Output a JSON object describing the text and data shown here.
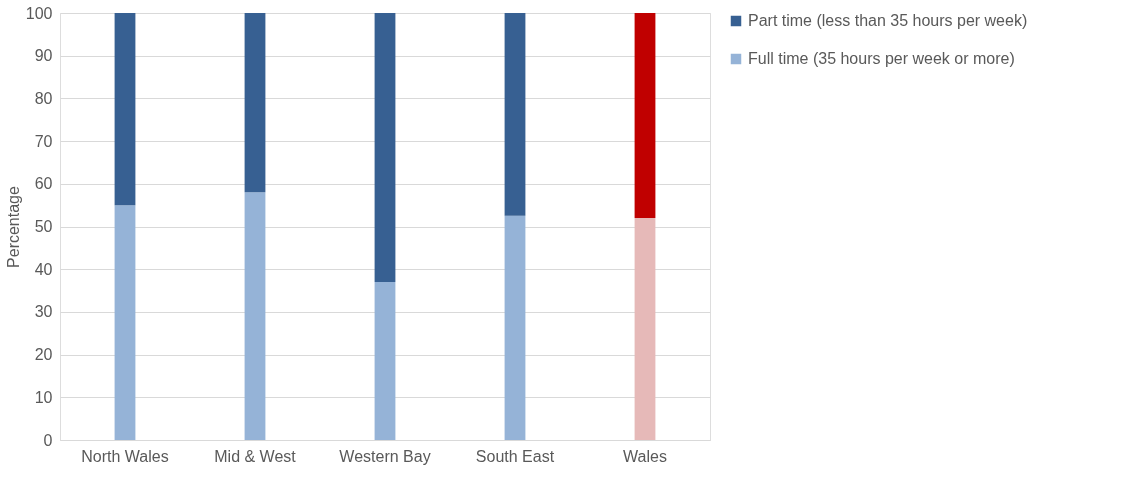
{
  "chart_data": {
    "type": "bar",
    "stacked": true,
    "ylabel": "Percentage",
    "categories": [
      "North Wales",
      "Mid & West",
      "Western Bay",
      "South East",
      "Wales"
    ],
    "series": [
      {
        "name": "Full time (35 hours per week or more)",
        "color": "#95b3d7",
        "colors": [
          "#95b3d7",
          "#95b3d7",
          "#95b3d7",
          "#95b3d7",
          "#e6b9b8"
        ],
        "values": [
          55,
          58,
          37,
          52.5,
          52
        ]
      },
      {
        "name": "Part time (less than 35 hours per week)",
        "color": "#376092",
        "colors": [
          "#376092",
          "#376092",
          "#376092",
          "#376092",
          "#c00000"
        ],
        "values": [
          45,
          42,
          63,
          47.5,
          48
        ]
      }
    ],
    "ylim": [
      0,
      100
    ],
    "yticks": [
      0,
      10,
      20,
      30,
      40,
      50,
      60,
      70,
      80,
      90,
      100
    ],
    "grid": "y",
    "legend": "right"
  }
}
